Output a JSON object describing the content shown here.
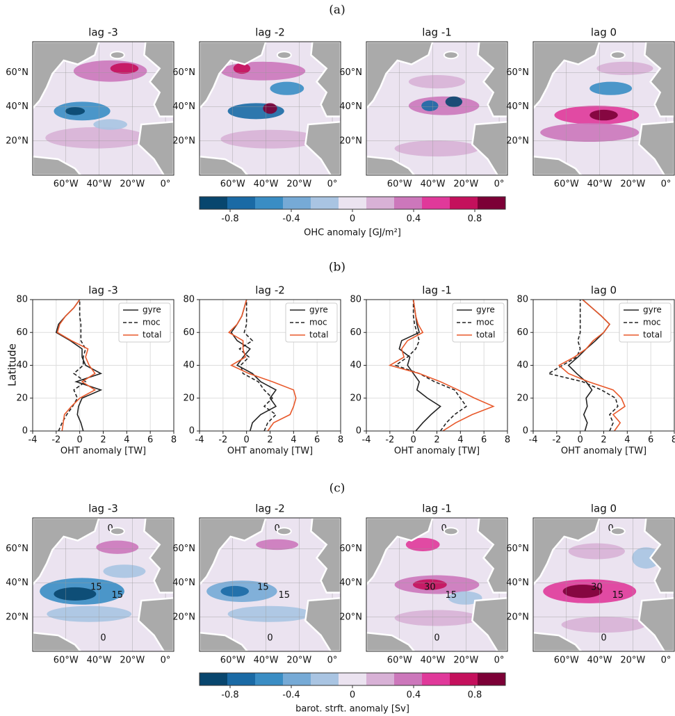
{
  "chart_data": [
    {
      "type": "map",
      "label": "(a)",
      "titles": [
        "lag -3",
        "lag -2",
        "lag -1",
        "lag 0"
      ],
      "xlim": [
        -80,
        5
      ],
      "xticks": [
        {
          "value": -60,
          "label": "60°W"
        },
        {
          "value": -40,
          "label": "40°W"
        },
        {
          "value": -20,
          "label": "20°W"
        },
        {
          "value": 0,
          "label": "0°"
        }
      ],
      "ylim": [
        0,
        78
      ],
      "yticks": [
        {
          "value": 20,
          "label": "20°N"
        },
        {
          "value": 40,
          "label": "40°N"
        },
        {
          "value": 60,
          "label": "60°N"
        }
      ],
      "colorbar": {
        "lim": [
          -1,
          1
        ],
        "ticks": [
          -0.8,
          -0.4,
          0,
          0.4,
          0.8
        ],
        "colors": [
          "#08466e",
          "#1a6aa5",
          "#3a8dc4",
          "#76aad6",
          "#a9c4e2",
          "#ebe3f0",
          "#d8b1d6",
          "#cc77bb",
          "#e0399a",
          "#c4105c",
          "#7c0036"
        ],
        "label": "OHC anomaly [GJ/m²]"
      }
    },
    {
      "type": "line",
      "label": "(b)",
      "y": [
        0,
        5,
        10,
        15,
        20,
        25,
        30,
        35,
        40,
        45,
        50,
        55,
        60,
        65,
        70,
        75,
        80
      ],
      "xlabel": "OHT anomaly [TW]",
      "ylabel": "Latitude",
      "xlim": [
        -4,
        8
      ],
      "xticks": [
        -4,
        -2,
        0,
        2,
        4,
        6,
        8
      ],
      "ylim": [
        0,
        80
      ],
      "yticks": [
        0,
        20,
        40,
        60,
        80
      ],
      "grid": true,
      "legend": "upper right",
      "subplots": [
        {
          "title": "lag -3",
          "series": [
            {
              "name": "gyre",
              "color": "#222222",
              "linestyle": "solid",
              "values": [
                0.3,
                0.1,
                -0.2,
                -0.1,
                0.2,
                1.8,
                -0.3,
                1.8,
                0.5,
                0.2,
                0.2,
                -0.8,
                -2.0,
                -1.8,
                -1.2,
                -0.5,
                0
              ]
            },
            {
              "name": "moc",
              "color": "#222222",
              "linestyle": "dashed",
              "values": [
                -1.8,
                -1.5,
                -1.1,
                -0.6,
                -0.2,
                -0.5,
                0.5,
                -0.5,
                0.3,
                0.3,
                0.5,
                0.1,
                0.1,
                0.1,
                0,
                0,
                0
              ]
            },
            {
              "name": "total",
              "color": "#e8582a",
              "linestyle": "solid",
              "values": [
                -1.5,
                -1.4,
                -1.3,
                -0.7,
                0,
                1.3,
                0.2,
                1.3,
                0.8,
                0.5,
                0.7,
                -0.7,
                -1.9,
                -1.7,
                -1.2,
                -0.5,
                0
              ]
            }
          ]
        },
        {
          "title": "lag -2",
          "series": [
            {
              "name": "gyre",
              "color": "#222222",
              "linestyle": "solid",
              "values": [
                0.3,
                0.5,
                1.2,
                2.5,
                2.0,
                2.5,
                1.2,
                0.5,
                -0.8,
                -0.3,
                0.3,
                -0.8,
                -1.3,
                -0.8,
                -0.4,
                -0.2,
                0
              ]
            },
            {
              "name": "moc",
              "color": "#222222",
              "linestyle": "dashed",
              "values": [
                1.5,
                1.8,
                2.5,
                1.5,
                2.2,
                1.5,
                1.0,
                -0.3,
                -0.5,
                0.2,
                -0.6,
                0.5,
                -0.2,
                0,
                0,
                0,
                0
              ]
            },
            {
              "name": "total",
              "color": "#e8582a",
              "linestyle": "solid",
              "values": [
                1.8,
                2.3,
                3.7,
                4.0,
                4.2,
                4.0,
                2.2,
                0.2,
                -1.3,
                -0.1,
                -0.3,
                -0.3,
                -1.5,
                -0.8,
                -0.4,
                -0.2,
                0
              ]
            }
          ]
        },
        {
          "title": "lag -1",
          "series": [
            {
              "name": "gyre",
              "color": "#222222",
              "linestyle": "solid",
              "values": [
                0.2,
                0.8,
                1.5,
                2.3,
                1.2,
                0.3,
                0.5,
                0,
                -0.5,
                -0.3,
                -1.2,
                -1.0,
                0.5,
                0.3,
                0.2,
                0.1,
                0
              ]
            },
            {
              "name": "moc",
              "color": "#222222",
              "linestyle": "dashed",
              "values": [
                2.3,
                2.8,
                3.5,
                4.5,
                4.0,
                3.5,
                1.8,
                0.5,
                -1.5,
                -0.5,
                0.2,
                0.5,
                0.3,
                0.1,
                0,
                0,
                0
              ]
            },
            {
              "name": "total",
              "color": "#e8582a",
              "linestyle": "solid",
              "values": [
                2.5,
                3.6,
                5.0,
                6.8,
                5.2,
                3.8,
                2.3,
                0.5,
                -2.0,
                -0.8,
                -1.0,
                -0.5,
                0.8,
                0.4,
                0.2,
                0.1,
                0
              ]
            }
          ]
        },
        {
          "title": "lag 0",
          "series": [
            {
              "name": "gyre",
              "color": "#222222",
              "linestyle": "solid",
              "values": [
                0.4,
                0.6,
                0.3,
                0.6,
                0.5,
                1.0,
                0.5,
                -0.3,
                -1.0,
                -0.2,
                0.5,
                1.3,
                2.0,
                2.5,
                1.8,
                1.0,
                0.2
              ]
            },
            {
              "name": "moc",
              "color": "#222222",
              "linestyle": "dashed",
              "values": [
                2.5,
                2.8,
                2.5,
                3.2,
                3.0,
                1.8,
                0.2,
                -2.7,
                -1.5,
                -0.3,
                0,
                -0.2,
                0,
                0,
                0,
                0,
                0
              ]
            },
            {
              "name": "total",
              "color": "#e8582a",
              "linestyle": "solid",
              "values": [
                2.9,
                3.4,
                2.8,
                3.8,
                3.5,
                2.8,
                0.7,
                -1.0,
                -1.8,
                -0.5,
                0.5,
                1.1,
                2.0,
                2.5,
                1.8,
                1.0,
                0.2
              ]
            }
          ]
        }
      ]
    },
    {
      "type": "map",
      "label": "(c)",
      "titles": [
        "lag -3",
        "lag -2",
        "lag -1",
        "lag 0"
      ],
      "xlim": [
        -80,
        5
      ],
      "xticks": [
        {
          "value": -60,
          "label": "60°W"
        },
        {
          "value": -40,
          "label": "40°W"
        },
        {
          "value": -20,
          "label": "20°W"
        },
        {
          "value": 0,
          "label": "0°"
        }
      ],
      "ylim": [
        0,
        78
      ],
      "yticks": [
        {
          "value": 20,
          "label": "20°N"
        },
        {
          "value": 40,
          "label": "40°N"
        },
        {
          "value": 60,
          "label": "60°N"
        }
      ],
      "contour_labels": [
        [
          "0",
          "15",
          "15",
          "0"
        ],
        [
          "0",
          "15",
          "15",
          "0"
        ],
        [
          "0",
          "30",
          "15",
          "0"
        ],
        [
          "0",
          "30",
          "15",
          "0"
        ]
      ],
      "colorbar": {
        "lim": [
          -1,
          1
        ],
        "ticks": [
          -0.8,
          -0.4,
          0,
          0.4,
          0.8
        ],
        "colors": [
          "#08466e",
          "#1a6aa5",
          "#3a8dc4",
          "#76aad6",
          "#a9c4e2",
          "#ebe3f0",
          "#d8b1d6",
          "#cc77bb",
          "#e0399a",
          "#c4105c",
          "#7c0036"
        ],
        "label": "barot. strft. anomaly [Sv]"
      }
    }
  ]
}
